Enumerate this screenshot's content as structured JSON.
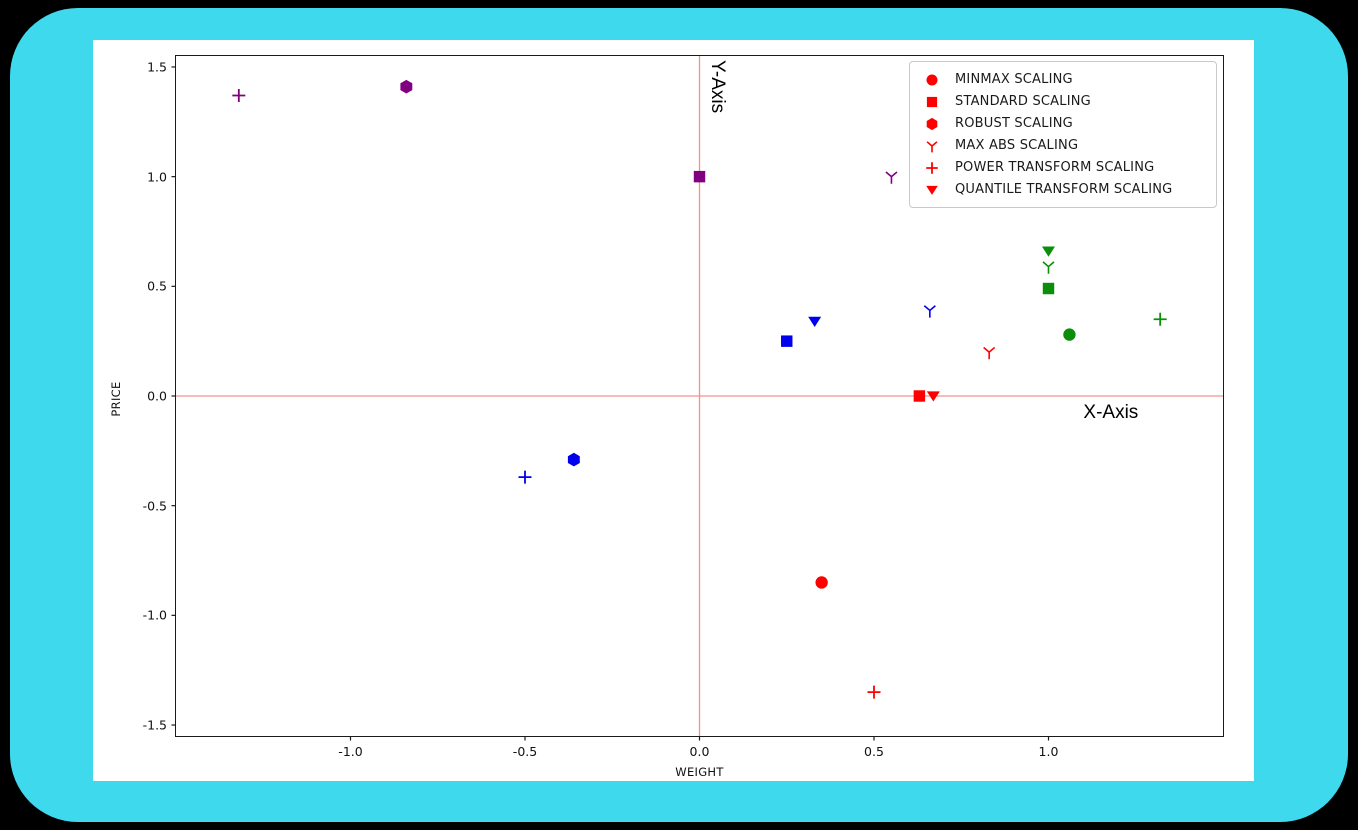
{
  "window": {
    "outer_background": "#000000",
    "frame_color": "#3fd9ee",
    "card_background": "#ffffff"
  },
  "chart_data": {
    "type": "scatter",
    "title": "",
    "xlabel": "WEIGHT",
    "ylabel": "PRICE",
    "x_axis_annotation": "X-Axis",
    "y_axis_annotation": "Y-Axis",
    "xlim": [
      -1.5,
      1.5
    ],
    "ylim": [
      -1.55,
      1.55
    ],
    "xtick_labels": [
      "-1.0",
      "-0.5",
      "0.0",
      "0.5",
      "1.0"
    ],
    "xtick_values": [
      -1.0,
      -0.5,
      0.0,
      0.5,
      1.0
    ],
    "ytick_labels": [
      "1.5",
      "1.0",
      "0.5",
      "0.0",
      "-0.5",
      "-1.0",
      "-1.5"
    ],
    "ytick_values": [
      1.5,
      1.0,
      0.5,
      0.0,
      -0.5,
      -1.0,
      -1.5
    ],
    "grid": false,
    "crosshair": {
      "x": 0,
      "y": 0,
      "color": "#f59090"
    },
    "legend_position": "upper right",
    "legend_marker_color": "#ff0000",
    "legend": [
      {
        "label": "MINMAX SCALING",
        "marker": "circle"
      },
      {
        "label": "STANDARD SCALING",
        "marker": "square"
      },
      {
        "label": "ROBUST SCALING",
        "marker": "hexagon"
      },
      {
        "label": "MAX ABS SCALING",
        "marker": "tri-down"
      },
      {
        "label": "POWER TRANSFORM SCALING",
        "marker": "plus"
      },
      {
        "label": "QUANTILE TRANSFORM SCALING",
        "marker": "triangle-down"
      }
    ],
    "series": [
      {
        "name": "dataset-purple",
        "color": "#800080",
        "points": [
          {
            "marker": "plus",
            "x": -1.32,
            "y": 1.37
          },
          {
            "marker": "hexagon",
            "x": -0.84,
            "y": 1.41
          },
          {
            "marker": "square",
            "x": 0.0,
            "y": 1.0
          },
          {
            "marker": "tri-down",
            "x": 0.55,
            "y": 1.0
          }
        ]
      },
      {
        "name": "dataset-blue",
        "color": "#0000ee",
        "points": [
          {
            "marker": "square",
            "x": 0.25,
            "y": 0.25
          },
          {
            "marker": "triangle-down",
            "x": 0.33,
            "y": 0.34
          },
          {
            "marker": "tri-down",
            "x": 0.66,
            "y": 0.39
          },
          {
            "marker": "plus",
            "x": -0.5,
            "y": -0.37
          },
          {
            "marker": "hexagon",
            "x": -0.36,
            "y": -0.29
          }
        ]
      },
      {
        "name": "dataset-green",
        "color": "#0b8f0b",
        "points": [
          {
            "marker": "triangle-down",
            "x": 1.0,
            "y": 0.66
          },
          {
            "marker": "tri-down",
            "x": 1.0,
            "y": 0.59
          },
          {
            "marker": "square",
            "x": 1.0,
            "y": 0.49
          },
          {
            "marker": "circle",
            "x": 1.06,
            "y": 0.28
          },
          {
            "marker": "plus",
            "x": 1.32,
            "y": 0.35
          }
        ]
      },
      {
        "name": "dataset-red",
        "color": "#ff0000",
        "points": [
          {
            "marker": "square",
            "x": 0.63,
            "y": 0.0
          },
          {
            "marker": "triangle-down",
            "x": 0.67,
            "y": 0.0
          },
          {
            "marker": "tri-down",
            "x": 0.83,
            "y": 0.2
          },
          {
            "marker": "circle",
            "x": 0.35,
            "y": -0.85
          },
          {
            "marker": "plus",
            "x": 0.5,
            "y": -1.35
          }
        ]
      }
    ]
  }
}
